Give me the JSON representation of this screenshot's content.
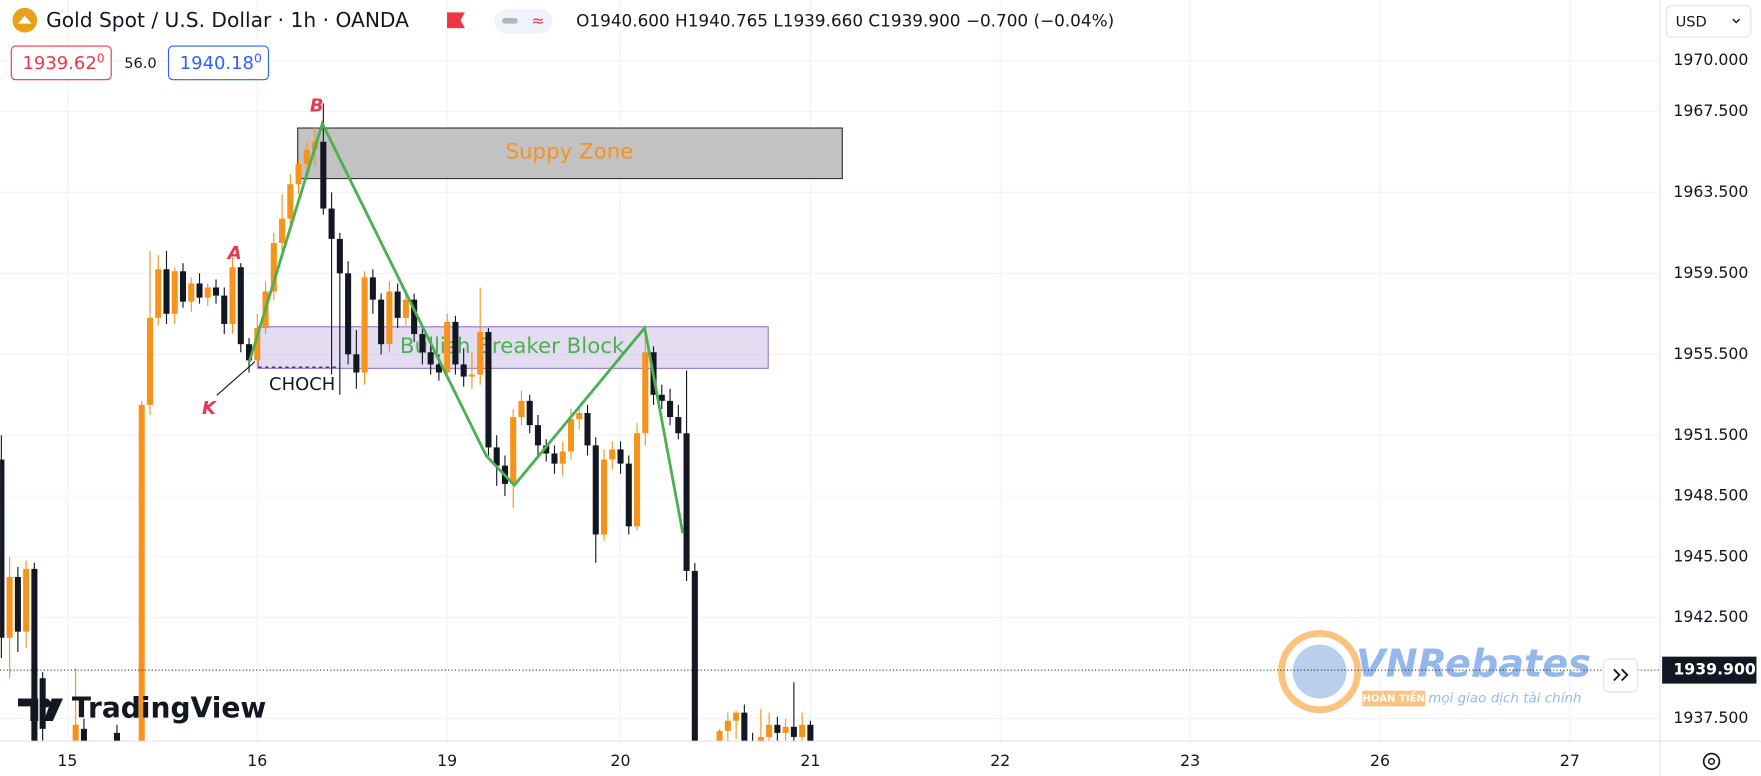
{
  "header": {
    "title": "Gold Spot / U.S. Dollar · 1h · OANDA",
    "ohlc_legend": [
      {
        "key": "O",
        "value": "1940.600"
      },
      {
        "key": "H",
        "value": "1940.765"
      },
      {
        "key": "L",
        "value": "1939.660"
      },
      {
        "key": "C",
        "value": "1939.900"
      }
    ],
    "change": "−0.700 (−0.04%)",
    "sell": {
      "main": "1939.62",
      "sup": "0"
    },
    "spread": "56.0",
    "buy": {
      "main": "1940.18",
      "sup": "0"
    },
    "currency": "USD"
  },
  "annotations": {
    "supply_zone": "Suppy Zone",
    "breaker_block": "Bullish Breaker Block",
    "point_a": "A",
    "point_b": "B",
    "point_k": "K",
    "choch": "CHOCH"
  },
  "watermarks": {
    "tradingview": "TradingView",
    "vnrebates": "VNRebates",
    "vnrebates_tag": "HOÀN TIỀN",
    "vnrebates_slogan": "mọi giao dịch tài chính"
  },
  "chart_data": {
    "type": "candlestick",
    "up_color": "#f7931a",
    "down_color": "#131722",
    "grid": true,
    "last_price": {
      "value": 1939.9,
      "label": "1939.900"
    },
    "xlim": [
      -8.16,
      192.9
    ],
    "xticks": [
      {
        "value": 0,
        "label": "15"
      },
      {
        "value": 23,
        "label": "16"
      },
      {
        "value": 46,
        "label": "19"
      },
      {
        "value": 67,
        "label": "20"
      },
      {
        "value": 90,
        "label": "21"
      },
      {
        "value": 113,
        "label": "22"
      },
      {
        "value": 136,
        "label": "23"
      },
      {
        "value": 159,
        "label": "26"
      },
      {
        "value": 182,
        "label": "27"
      }
    ],
    "ylim": [
      1936.39,
      1973
    ],
    "yticks": [
      {
        "value": 1970,
        "label": "1970.000"
      },
      {
        "value": 1967.5,
        "label": "1967.500"
      },
      {
        "value": 1963.5,
        "label": "1963.500"
      },
      {
        "value": 1959.5,
        "label": "1959.500"
      },
      {
        "value": 1955.5,
        "label": "1955.500"
      },
      {
        "value": 1951.5,
        "label": "1951.500"
      },
      {
        "value": 1948.5,
        "label": "1948.500"
      },
      {
        "value": 1945.5,
        "label": "1945.500"
      },
      {
        "value": 1942.5,
        "label": "1942.500"
      },
      {
        "value": 1937.5,
        "label": "1937.500"
      }
    ],
    "x": [
      -8,
      -7,
      -6,
      -5,
      -4,
      -3,
      1,
      2,
      6,
      9,
      10,
      11,
      12,
      13,
      14,
      15,
      16,
      17,
      18,
      19,
      20,
      21,
      22,
      23,
      24,
      25,
      26,
      27,
      28,
      29,
      30,
      31,
      32,
      33,
      34,
      35,
      36,
      37,
      38,
      39,
      40,
      41,
      42,
      43,
      44,
      45,
      46,
      47,
      48,
      49,
      50,
      51,
      52,
      53,
      54,
      55,
      56,
      57,
      58,
      59,
      60,
      61,
      62,
      63,
      64,
      65,
      66,
      67,
      68,
      69,
      70,
      71,
      72,
      73,
      74,
      75,
      76,
      79,
      80,
      81,
      82,
      83,
      84,
      85,
      86,
      87,
      88,
      89,
      90
    ],
    "open": [
      1950.3,
      1941.5,
      1944.5,
      1941.8,
      1944.9,
      1939.5,
      1935.5,
      1937,
      1936.8,
      1935,
      1953,
      1957.3,
      1959.7,
      1957.5,
      1959.6,
      1958.1,
      1959,
      1958.3,
      1958.8,
      1958.4,
      1957,
      1959.8,
      1956,
      1955.2,
      1956.8,
      1958.6,
      1961,
      1962.2,
      1963.9,
      1964.9,
      1965.6,
      1966,
      1962.7,
      1961.2,
      1959.5,
      1955.5,
      1954.6,
      1959.3,
      1958.2,
      1956,
      1958.6,
      1957.3,
      1958.2,
      1956.5,
      1955.6,
      1955,
      1954.6,
      1957.1,
      1955,
      1954.4,
      1954.5,
      1956.6,
      1950.9,
      1950,
      1949.1,
      1952.4,
      1953.2,
      1952,
      1951,
      1950.6,
      1950.1,
      1950.7,
      1952.3,
      1952.6,
      1951,
      1946.6,
      1950.3,
      1950.8,
      1950.1,
      1947,
      1951.6,
      1955.6,
      1953.5,
      1953.2,
      1952.4,
      1951.6,
      1944.8,
      1936.2,
      1936.9,
      1937.4,
      1937.8,
      1936.3,
      1935.8,
      1936.6,
      1937.2,
      1936.8,
      1937.1,
      1936.6,
      1937.2
    ],
    "high": [
      1951.5,
      1945.5,
      1945,
      1945.3,
      1945.2,
      1939.8,
      1940,
      1937.5,
      1937.2,
      1953.2,
      1960.6,
      1960.4,
      1960.6,
      1959.8,
      1960,
      1959.3,
      1959.5,
      1959,
      1959.2,
      1958.8,
      1960.3,
      1960,
      1956.3,
      1957.5,
      1959.1,
      1961.5,
      1963.4,
      1964.4,
      1965.1,
      1966,
      1966.7,
      1967.9,
      1963.5,
      1961.5,
      1960.1,
      1956.7,
      1959.6,
      1959.7,
      1958.5,
      1959.1,
      1959,
      1958.7,
      1958.5,
      1957,
      1956,
      1955.5,
      1957.5,
      1957.4,
      1955.8,
      1955.6,
      1958.8,
      1956.8,
      1951.5,
      1950.5,
      1952.8,
      1953.7,
      1953.5,
      1952.5,
      1951.3,
      1951,
      1951.2,
      1952.8,
      1953,
      1953,
      1951.4,
      1950.8,
      1951.2,
      1951.2,
      1950.5,
      1952.1,
      1956.4,
      1955.9,
      1954,
      1953.8,
      1953,
      1954.7,
      1945.2,
      1937,
      1937.8,
      1937.9,
      1938.2,
      1936.8,
      1938,
      1937.8,
      1937.6,
      1937.5,
      1939.3,
      1937.8,
      1937.4
    ],
    "low": [
      1940.5,
      1939.5,
      1940.8,
      1941,
      1935,
      1935,
      1935,
      1935,
      1935,
      1935,
      1952.5,
      1956.9,
      1957,
      1957,
      1957.8,
      1957.6,
      1958,
      1957.9,
      1958,
      1956.5,
      1956.5,
      1955.6,
      1954.6,
      1954.8,
      1956.5,
      1958.2,
      1960.5,
      1961.8,
      1963.4,
      1964.4,
      1964.8,
      1962.4,
      1954.5,
      1953.5,
      1955,
      1953.8,
      1954,
      1957.5,
      1955.5,
      1955.6,
      1956.8,
      1956.9,
      1956.1,
      1955,
      1954.5,
      1954.2,
      1954.3,
      1954.5,
      1953.9,
      1953.8,
      1954,
      1950.5,
      1949,
      1948.5,
      1947.9,
      1952,
      1951.6,
      1950.5,
      1950.2,
      1949.6,
      1949.5,
      1950.3,
      1951.8,
      1950.5,
      1945.2,
      1946.3,
      1949.8,
      1949.6,
      1946.6,
      1946.8,
      1951,
      1953,
      1952.8,
      1952,
      1951.3,
      1944.3,
      1935,
      1935,
      1936.2,
      1936.5,
      1935.8,
      1935.5,
      1935.5,
      1936.3,
      1936.4,
      1936.4,
      1936.2,
      1936.4,
      1935.6
    ],
    "close": [
      1941.5,
      1944.5,
      1941.8,
      1944.9,
      1936,
      1937,
      1937.2,
      1936,
      1935.5,
      1953,
      1957.3,
      1959.7,
      1957.5,
      1959.6,
      1958.1,
      1959,
      1958.3,
      1958.8,
      1958.4,
      1957,
      1959.8,
      1956,
      1955.2,
      1956.8,
      1958.6,
      1961,
      1962.2,
      1963.9,
      1964.9,
      1965.6,
      1966,
      1962.7,
      1961.2,
      1959.5,
      1955.5,
      1954.6,
      1959.3,
      1958.2,
      1956,
      1958.6,
      1957.3,
      1958.2,
      1956.5,
      1955.6,
      1955,
      1954.6,
      1957.1,
      1955,
      1954.4,
      1954.5,
      1956.6,
      1950.9,
      1950,
      1949.1,
      1952.4,
      1953.2,
      1952,
      1951,
      1950.6,
      1950.1,
      1950.7,
      1952.3,
      1952.6,
      1951,
      1946.6,
      1950.3,
      1950.8,
      1950.1,
      1947,
      1951.6,
      1955.6,
      1953.5,
      1953.2,
      1952.4,
      1951.6,
      1944.8,
      1935.5,
      1936.9,
      1937.4,
      1937.8,
      1936,
      1935.8,
      1936.6,
      1937.2,
      1936.8,
      1937.1,
      1936.6,
      1937.2,
      1936.2
    ]
  }
}
